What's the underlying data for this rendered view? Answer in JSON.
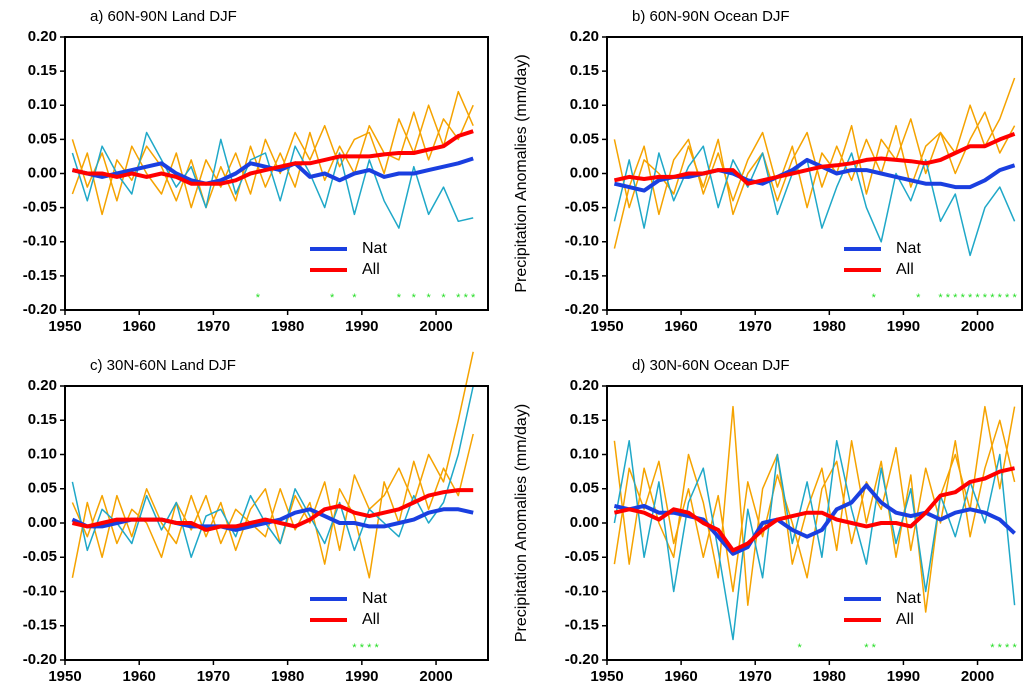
{
  "chart_data": [
    {
      "type": "line",
      "title": "a) 60N-90N Land DJF",
      "x": [
        1951,
        1953,
        1955,
        1957,
        1959,
        1961,
        1963,
        1965,
        1967,
        1969,
        1971,
        1973,
        1975,
        1977,
        1979,
        1981,
        1983,
        1985,
        1987,
        1989,
        1991,
        1993,
        1995,
        1997,
        1999,
        2001,
        2003,
        2005
      ],
      "series": [
        {
          "color": "#f5a300",
          "values": [
            0.05,
            -0.02,
            0.03,
            -0.04,
            0.04,
            0.0,
            -0.03,
            0.03,
            -0.05,
            0.02,
            -0.02,
            0.03,
            -0.03,
            0.05,
            0.0,
            0.06,
            0.02,
            0.07,
            0.01,
            0.05,
            0.06,
            0.0,
            0.08,
            0.03,
            0.1,
            0.04,
            0.12,
            0.07
          ]
        },
        {
          "color": "#f5a300",
          "values": [
            -0.03,
            0.03,
            -0.06,
            0.02,
            -0.01,
            0.04,
            0.01,
            -0.04,
            0.02,
            -0.05,
            0.01,
            -0.04,
            0.04,
            -0.02,
            0.03,
            -0.02,
            0.06,
            -0.01,
            0.04,
            0.0,
            0.07,
            0.03,
            0.02,
            0.09,
            0.02,
            0.08,
            0.05,
            0.1
          ]
        },
        {
          "color": "#1fa8c8",
          "values": [
            0.03,
            -0.04,
            0.04,
            0.0,
            -0.03,
            0.06,
            0.02,
            -0.02,
            0.01,
            -0.05,
            0.05,
            -0.03,
            0.02,
            0.03,
            -0.04,
            0.04,
            0.0,
            -0.05,
            0.03,
            -0.06,
            0.02,
            -0.04,
            -0.08,
            0.01,
            -0.06,
            -0.02,
            -0.07,
            -0.065
          ]
        },
        {
          "name": "Nat",
          "color": "#1a3fe0",
          "values": [
            0.005,
            0.0,
            -0.005,
            0.0,
            0.005,
            0.01,
            0.015,
            0.0,
            -0.01,
            -0.015,
            -0.01,
            0.0,
            0.015,
            0.01,
            0.005,
            0.015,
            -0.005,
            0.0,
            -0.01,
            0.0,
            0.005,
            -0.005,
            0.0,
            0.0,
            0.005,
            0.01,
            0.015,
            0.022
          ]
        },
        {
          "name": "All",
          "color": "#ff0000",
          "values": [
            0.005,
            0.0,
            0.0,
            -0.005,
            0.0,
            -0.005,
            0.0,
            -0.005,
            -0.015,
            -0.015,
            -0.015,
            -0.01,
            0.0,
            0.005,
            0.01,
            0.015,
            0.015,
            0.02,
            0.025,
            0.025,
            0.025,
            0.028,
            0.03,
            0.03,
            0.035,
            0.04,
            0.055,
            0.062
          ]
        }
      ],
      "significance_marker": "*",
      "significance_color": "#22dd22",
      "significant_years": [
        1976,
        1986,
        1989,
        1995,
        1997,
        1999,
        2001,
        2003,
        2004,
        2005
      ],
      "xlim": [
        1950,
        2007
      ],
      "ylim": [
        -0.2,
        0.2
      ],
      "xticks": [
        1950,
        1960,
        1970,
        1980,
        1990,
        2000
      ],
      "yticks": [
        {
          "value": -0.2,
          "label": "-0.20"
        },
        {
          "value": -0.15,
          "label": "-0.15"
        },
        {
          "value": -0.1,
          "label": "-0.10"
        },
        {
          "value": -0.05,
          "label": "-0.05"
        },
        {
          "value": 0,
          "label": "0.00"
        },
        {
          "value": 0.05,
          "label": "0.05"
        },
        {
          "value": 0.1,
          "label": "0.10"
        },
        {
          "value": 0.15,
          "label": "0.15"
        },
        {
          "value": 0.2,
          "label": "0.20"
        }
      ],
      "legend": "lower right"
    },
    {
      "type": "line",
      "title": "b) 60N-90N Ocean DJF",
      "ylabel": "Precipitation Anomalies (mm/day)",
      "x": [
        1951,
        1953,
        1955,
        1957,
        1959,
        1961,
        1963,
        1965,
        1967,
        1969,
        1971,
        1973,
        1975,
        1977,
        1979,
        1981,
        1983,
        1985,
        1987,
        1989,
        1991,
        1993,
        1995,
        1997,
        1999,
        2001,
        2003,
        2005
      ],
      "series": [
        {
          "color": "#f5a300",
          "values": [
            -0.11,
            -0.02,
            0.04,
            -0.06,
            0.02,
            0.05,
            -0.03,
            0.03,
            -0.04,
            0.02,
            0.06,
            -0.02,
            0.04,
            -0.05,
            0.03,
            0.0,
            0.07,
            -0.03,
            0.05,
            0.02,
            0.08,
            0.0,
            0.06,
            0.03,
            0.1,
            0.04,
            0.08,
            0.14
          ]
        },
        {
          "color": "#f5a300",
          "values": [
            0.05,
            -0.05,
            0.02,
            0.0,
            -0.03,
            0.04,
            -0.02,
            0.05,
            -0.06,
            0.0,
            0.03,
            -0.04,
            0.02,
            0.06,
            -0.02,
            0.04,
            -0.01,
            0.05,
            0.0,
            0.07,
            -0.02,
            0.04,
            0.06,
            0.0,
            0.05,
            0.09,
            0.03,
            0.07
          ]
        },
        {
          "color": "#1fa8c8",
          "values": [
            -0.07,
            0.02,
            -0.08,
            0.03,
            -0.04,
            0.01,
            0.04,
            -0.05,
            0.02,
            -0.02,
            0.03,
            -0.06,
            0.0,
            0.02,
            -0.08,
            -0.02,
            0.03,
            -0.05,
            -0.1,
            0.0,
            -0.04,
            0.02,
            -0.07,
            -0.03,
            -0.12,
            -0.05,
            -0.02,
            -0.07
          ]
        },
        {
          "name": "Nat",
          "color": "#1a3fe0",
          "values": [
            -0.015,
            -0.02,
            -0.025,
            -0.01,
            -0.005,
            -0.005,
            0.0,
            0.005,
            0.0,
            -0.01,
            -0.015,
            -0.005,
            0.005,
            0.02,
            0.01,
            0.0,
            0.005,
            0.005,
            0.0,
            -0.005,
            -0.01,
            -0.015,
            -0.015,
            -0.02,
            -0.02,
            -0.01,
            0.005,
            0.012
          ]
        },
        {
          "name": "All",
          "color": "#ff0000",
          "values": [
            -0.01,
            -0.005,
            -0.008,
            -0.005,
            -0.005,
            0.0,
            0.0,
            0.005,
            0.005,
            -0.015,
            -0.01,
            -0.005,
            0.0,
            0.005,
            0.01,
            0.012,
            0.015,
            0.02,
            0.022,
            0.02,
            0.018,
            0.015,
            0.02,
            0.03,
            0.04,
            0.04,
            0.05,
            0.058
          ]
        }
      ],
      "significance_marker": "*",
      "significance_color": "#22dd22",
      "significant_years": [
        1986,
        1992,
        1995,
        1996,
        1997,
        1998,
        1999,
        2000,
        2001,
        2002,
        2003,
        2004,
        2005
      ],
      "xlim": [
        1950,
        2006
      ],
      "ylim": [
        -0.2,
        0.2
      ],
      "xticks": [
        1950,
        1960,
        1970,
        1980,
        1990,
        2000
      ],
      "yticks": [
        {
          "value": -0.2,
          "label": "-0.20"
        },
        {
          "value": -0.15,
          "label": "-0.15"
        },
        {
          "value": -0.1,
          "label": "-0.10"
        },
        {
          "value": -0.05,
          "label": "-0.05"
        },
        {
          "value": 0,
          "label": "0.00"
        },
        {
          "value": 0.05,
          "label": "0.05"
        },
        {
          "value": 0.1,
          "label": "0.10"
        },
        {
          "value": 0.15,
          "label": "0.15"
        },
        {
          "value": 0.2,
          "label": "0.20"
        }
      ],
      "legend": "lower right"
    },
    {
      "type": "line",
      "title": "c) 30N-60N Land DJF",
      "x": [
        1951,
        1953,
        1955,
        1957,
        1959,
        1961,
        1963,
        1965,
        1967,
        1969,
        1971,
        1973,
        1975,
        1977,
        1979,
        1981,
        1983,
        1985,
        1987,
        1989,
        1991,
        1993,
        1995,
        1997,
        1999,
        2001,
        2003,
        2005
      ],
      "series": [
        {
          "color": "#f5a300",
          "values": [
            -0.08,
            0.03,
            -0.05,
            0.04,
            -0.02,
            0.05,
            0.0,
            -0.03,
            0.04,
            -0.02,
            0.03,
            -0.04,
            0.02,
            0.05,
            -0.03,
            0.04,
            0.0,
            0.06,
            -0.04,
            0.07,
            0.02,
            0.04,
            0.08,
            0.03,
            0.1,
            0.06,
            0.15,
            0.25
          ]
        },
        {
          "color": "#f5a300",
          "values": [
            0.03,
            -0.02,
            0.04,
            -0.03,
            0.02,
            0.0,
            -0.05,
            0.03,
            -0.01,
            0.04,
            -0.03,
            0.02,
            0.0,
            -0.02,
            0.05,
            -0.01,
            0.03,
            -0.06,
            0.05,
            0.01,
            -0.08,
            0.06,
            0.0,
            0.09,
            0.02,
            0.08,
            0.04,
            0.13
          ]
        },
        {
          "color": "#1fa8c8",
          "values": [
            0.06,
            -0.04,
            0.02,
            0.0,
            -0.03,
            0.04,
            -0.01,
            0.03,
            -0.05,
            0.01,
            0.02,
            -0.02,
            0.04,
            0.0,
            -0.03,
            0.05,
            0.01,
            -0.03,
            0.03,
            -0.04,
            0.02,
            0.0,
            -0.02,
            0.04,
            0.0,
            0.03,
            0.1,
            0.2
          ]
        },
        {
          "name": "Nat",
          "color": "#1a3fe0",
          "values": [
            0.005,
            -0.005,
            -0.005,
            0.0,
            0.005,
            0.005,
            0.005,
            0.0,
            -0.005,
            -0.005,
            -0.005,
            -0.01,
            -0.005,
            0.0,
            0.005,
            0.015,
            0.02,
            0.01,
            0.0,
            0.0,
            -0.005,
            -0.005,
            0.0,
            0.005,
            0.015,
            0.02,
            0.02,
            0.015
          ]
        },
        {
          "name": "All",
          "color": "#ff0000",
          "values": [
            0.0,
            -0.005,
            0.0,
            0.005,
            0.005,
            0.005,
            0.005,
            0.0,
            0.0,
            -0.01,
            -0.005,
            -0.005,
            0.0,
            0.005,
            0.0,
            -0.005,
            0.005,
            0.02,
            0.025,
            0.015,
            0.01,
            0.015,
            0.02,
            0.03,
            0.04,
            0.045,
            0.048,
            0.048
          ]
        }
      ],
      "significance_marker": "*",
      "significance_color": "#22dd22",
      "significant_years": [
        1989,
        1990,
        1991,
        1992
      ],
      "xlim": [
        1950,
        2007
      ],
      "ylim": [
        -0.2,
        0.2
      ],
      "xticks": [
        1950,
        1960,
        1970,
        1980,
        1990,
        2000
      ],
      "yticks": [
        {
          "value": -0.2,
          "label": "-0.20"
        },
        {
          "value": -0.15,
          "label": "-0.15"
        },
        {
          "value": -0.1,
          "label": "-0.10"
        },
        {
          "value": -0.05,
          "label": "-0.05"
        },
        {
          "value": 0,
          "label": "0.00"
        },
        {
          "value": 0.05,
          "label": "0.05"
        },
        {
          "value": 0.1,
          "label": "0.10"
        },
        {
          "value": 0.15,
          "label": "0.15"
        },
        {
          "value": 0.2,
          "label": "0.20"
        }
      ],
      "legend": "lower right"
    },
    {
      "type": "line",
      "title": "d) 30N-60N Ocean DJF",
      "ylabel": "Precipitation Anomalies (mm/day)",
      "x": [
        1951,
        1953,
        1955,
        1957,
        1959,
        1961,
        1963,
        1965,
        1967,
        1969,
        1971,
        1973,
        1975,
        1977,
        1979,
        1981,
        1983,
        1985,
        1987,
        1989,
        1991,
        1993,
        1995,
        1997,
        1999,
        2001,
        2003,
        2005
      ],
      "series": [
        {
          "color": "#f5a300",
          "values": [
            0.12,
            -0.06,
            0.08,
            0.0,
            -0.05,
            0.1,
            0.03,
            -0.08,
            0.17,
            -0.12,
            0.05,
            0.1,
            -0.06,
            0.02,
            0.08,
            -0.04,
            0.12,
            0.0,
            0.09,
            -0.05,
            0.07,
            -0.13,
            0.04,
            0.1,
            0.02,
            0.17,
            0.05,
            0.17
          ]
        },
        {
          "color": "#f5a300",
          "values": [
            -0.06,
            0.08,
            0.02,
            0.09,
            -0.03,
            0.05,
            -0.05,
            0.04,
            -0.1,
            0.06,
            -0.02,
            0.07,
            0.0,
            -0.08,
            0.05,
            0.09,
            -0.03,
            0.06,
            0.02,
            0.11,
            -0.04,
            0.08,
            0.0,
            0.12,
            -0.02,
            0.08,
            0.15,
            0.06
          ]
        },
        {
          "color": "#1fa8c8",
          "values": [
            0.0,
            0.12,
            -0.05,
            0.06,
            -0.1,
            0.03,
            0.08,
            -0.04,
            -0.17,
            0.02,
            -0.08,
            0.1,
            -0.03,
            0.06,
            -0.05,
            0.12,
            0.02,
            -0.06,
            0.08,
            -0.03,
            0.05,
            -0.1,
            0.04,
            -0.02,
            0.06,
            0.0,
            0.1,
            -0.12
          ]
        },
        {
          "name": "Nat",
          "color": "#1a3fe0",
          "values": [
            0.025,
            0.02,
            0.025,
            0.015,
            0.015,
            0.01,
            0.005,
            -0.02,
            -0.045,
            -0.035,
            0.0,
            0.005,
            -0.01,
            -0.02,
            -0.01,
            0.02,
            0.03,
            0.055,
            0.03,
            0.015,
            0.01,
            0.015,
            0.005,
            0.015,
            0.02,
            0.015,
            0.005,
            -0.015
          ]
        },
        {
          "name": "All",
          "color": "#ff0000",
          "values": [
            0.015,
            0.02,
            0.015,
            0.005,
            0.02,
            0.015,
            0.0,
            -0.01,
            -0.04,
            -0.03,
            -0.01,
            0.005,
            0.01,
            0.015,
            0.015,
            0.005,
            0.0,
            -0.005,
            0.0,
            0.0,
            -0.005,
            0.015,
            0.04,
            0.045,
            0.06,
            0.065,
            0.075,
            0.08
          ]
        }
      ],
      "significance_marker": "*",
      "significance_color": "#22dd22",
      "significant_years": [
        1976,
        1985,
        1986,
        2002,
        2003,
        2004,
        2005
      ],
      "xlim": [
        1950,
        2006
      ],
      "ylim": [
        -0.2,
        0.2
      ],
      "xticks": [
        1950,
        1960,
        1970,
        1980,
        1990,
        2000
      ],
      "yticks": [
        {
          "value": -0.2,
          "label": "-0.20"
        },
        {
          "value": -0.15,
          "label": "-0.15"
        },
        {
          "value": -0.1,
          "label": "-0.10"
        },
        {
          "value": -0.05,
          "label": "-0.05"
        },
        {
          "value": 0,
          "label": "0.00"
        },
        {
          "value": 0.05,
          "label": "0.05"
        },
        {
          "value": 0.1,
          "label": "0.10"
        },
        {
          "value": 0.15,
          "label": "0.15"
        },
        {
          "value": 0.2,
          "label": "0.20"
        }
      ],
      "legend": "lower right"
    }
  ]
}
